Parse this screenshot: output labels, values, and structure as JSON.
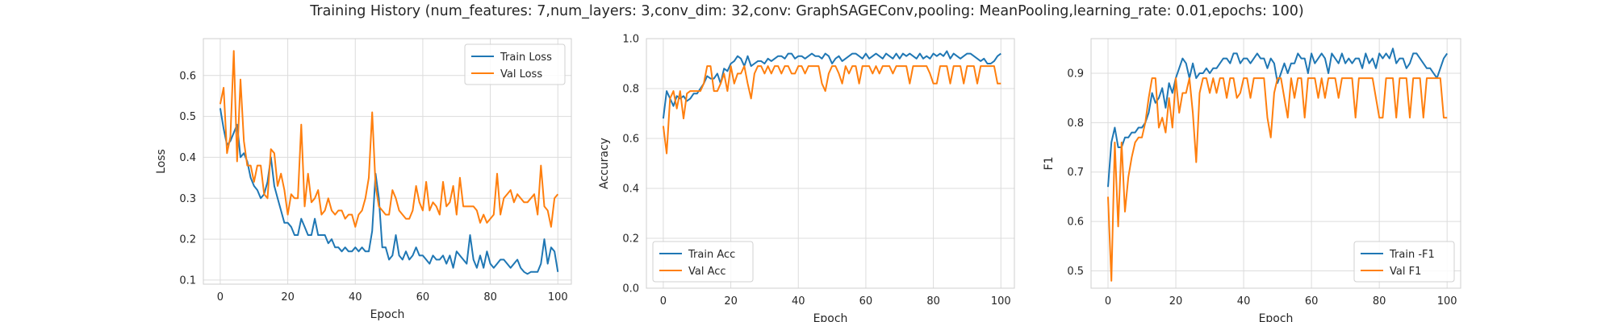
{
  "suptitle": "Training History (num_features: 7,num_layers: 3,conv_dim: 32,conv: GraphSAGEConv,pooling: MeanPooling,learning_rate: 0.01,epochs: 100)",
  "colors": {
    "train": "#1f77b4",
    "val": "#ff7f0e",
    "grid": "#dcdcdc",
    "frame": "#cfcfcf"
  },
  "chart_data": [
    {
      "type": "line",
      "xlabel": "Epoch",
      "ylabel": "Loss",
      "xlim": [
        -5,
        104
      ],
      "ylim": [
        0.09,
        0.69
      ],
      "xticks": [
        0,
        20,
        40,
        60,
        80,
        100
      ],
      "yticks": [
        0.1,
        0.2,
        0.3,
        0.4,
        0.5,
        0.6
      ],
      "ytick_labels": [
        "0.1",
        "0.2",
        "0.3",
        "0.4",
        "0.5",
        "0.6"
      ],
      "grid": true,
      "legend_loc": "top-right",
      "series": [
        {
          "name": "Train Loss",
          "color": "#1f77b4",
          "values": [
            0.52,
            0.47,
            0.43,
            0.44,
            0.46,
            0.48,
            0.4,
            0.41,
            0.39,
            0.35,
            0.33,
            0.32,
            0.3,
            0.31,
            0.34,
            0.4,
            0.33,
            0.3,
            0.27,
            0.24,
            0.24,
            0.23,
            0.21,
            0.21,
            0.25,
            0.23,
            0.21,
            0.21,
            0.25,
            0.21,
            0.21,
            0.21,
            0.19,
            0.2,
            0.18,
            0.18,
            0.17,
            0.18,
            0.17,
            0.17,
            0.18,
            0.17,
            0.18,
            0.17,
            0.17,
            0.22,
            0.36,
            0.3,
            0.18,
            0.18,
            0.15,
            0.16,
            0.21,
            0.16,
            0.15,
            0.17,
            0.15,
            0.16,
            0.18,
            0.16,
            0.16,
            0.15,
            0.14,
            0.16,
            0.15,
            0.15,
            0.16,
            0.14,
            0.16,
            0.13,
            0.17,
            0.16,
            0.15,
            0.14,
            0.21,
            0.15,
            0.13,
            0.16,
            0.13,
            0.17,
            0.14,
            0.13,
            0.14,
            0.15,
            0.15,
            0.14,
            0.13,
            0.14,
            0.15,
            0.13,
            0.12,
            0.115,
            0.12,
            0.12,
            0.12,
            0.14,
            0.2,
            0.14,
            0.18,
            0.17,
            0.12
          ]
        },
        {
          "name": "Val Loss",
          "color": "#ff7f0e",
          "values": [
            0.53,
            0.57,
            0.41,
            0.45,
            0.66,
            0.39,
            0.59,
            0.44,
            0.38,
            0.38,
            0.34,
            0.38,
            0.38,
            0.31,
            0.3,
            0.42,
            0.41,
            0.33,
            0.36,
            0.32,
            0.26,
            0.31,
            0.3,
            0.3,
            0.48,
            0.28,
            0.36,
            0.29,
            0.3,
            0.32,
            0.26,
            0.27,
            0.3,
            0.27,
            0.26,
            0.27,
            0.27,
            0.25,
            0.26,
            0.26,
            0.23,
            0.26,
            0.27,
            0.3,
            0.35,
            0.51,
            0.33,
            0.28,
            0.27,
            0.26,
            0.26,
            0.32,
            0.3,
            0.27,
            0.26,
            0.25,
            0.25,
            0.27,
            0.33,
            0.29,
            0.27,
            0.34,
            0.27,
            0.29,
            0.28,
            0.26,
            0.34,
            0.28,
            0.29,
            0.33,
            0.26,
            0.35,
            0.28,
            0.28,
            0.28,
            0.28,
            0.27,
            0.24,
            0.26,
            0.24,
            0.25,
            0.26,
            0.36,
            0.26,
            0.3,
            0.31,
            0.32,
            0.29,
            0.31,
            0.3,
            0.29,
            0.29,
            0.3,
            0.31,
            0.26,
            0.38,
            0.28,
            0.27,
            0.23,
            0.3,
            0.31
          ]
        }
      ]
    },
    {
      "type": "line",
      "xlabel": "Epoch",
      "ylabel": "Accuracy",
      "xlim": [
        -5,
        104
      ],
      "ylim": [
        0.0,
        1.0
      ],
      "xticks": [
        0,
        20,
        40,
        60,
        80,
        100
      ],
      "yticks": [
        0.0,
        0.2,
        0.4,
        0.6,
        0.8,
        1.0
      ],
      "ytick_labels": [
        "0.0",
        "0.2",
        "0.4",
        "0.6",
        "0.8",
        "1.0"
      ],
      "grid": true,
      "legend_loc": "bottom-left",
      "series": [
        {
          "name": "Train Acc",
          "color": "#1f77b4",
          "values": [
            0.68,
            0.79,
            0.76,
            0.73,
            0.77,
            0.76,
            0.77,
            0.75,
            0.76,
            0.78,
            0.78,
            0.8,
            0.82,
            0.85,
            0.84,
            0.84,
            0.86,
            0.82,
            0.88,
            0.87,
            0.9,
            0.91,
            0.93,
            0.92,
            0.89,
            0.93,
            0.89,
            0.9,
            0.91,
            0.91,
            0.9,
            0.92,
            0.91,
            0.92,
            0.93,
            0.93,
            0.92,
            0.94,
            0.94,
            0.92,
            0.93,
            0.93,
            0.92,
            0.93,
            0.94,
            0.93,
            0.93,
            0.92,
            0.94,
            0.93,
            0.9,
            0.92,
            0.93,
            0.91,
            0.92,
            0.93,
            0.94,
            0.94,
            0.93,
            0.92,
            0.94,
            0.92,
            0.93,
            0.94,
            0.93,
            0.92,
            0.94,
            0.93,
            0.92,
            0.94,
            0.92,
            0.94,
            0.93,
            0.94,
            0.93,
            0.92,
            0.94,
            0.92,
            0.93,
            0.92,
            0.94,
            0.93,
            0.94,
            0.93,
            0.95,
            0.92,
            0.94,
            0.93,
            0.92,
            0.93,
            0.94,
            0.94,
            0.93,
            0.92,
            0.91,
            0.92,
            0.9,
            0.9,
            0.91,
            0.93,
            0.94
          ]
        },
        {
          "name": "Val Acc",
          "color": "#ff7f0e",
          "values": [
            0.65,
            0.54,
            0.76,
            0.79,
            0.72,
            0.79,
            0.68,
            0.78,
            0.79,
            0.79,
            0.79,
            0.79,
            0.82,
            0.89,
            0.89,
            0.79,
            0.79,
            0.82,
            0.86,
            0.79,
            0.89,
            0.82,
            0.86,
            0.86,
            0.89,
            0.82,
            0.76,
            0.86,
            0.89,
            0.89,
            0.86,
            0.89,
            0.86,
            0.89,
            0.89,
            0.86,
            0.89,
            0.89,
            0.86,
            0.86,
            0.89,
            0.89,
            0.86,
            0.89,
            0.89,
            0.89,
            0.89,
            0.82,
            0.79,
            0.86,
            0.89,
            0.89,
            0.86,
            0.82,
            0.89,
            0.86,
            0.89,
            0.89,
            0.82,
            0.89,
            0.89,
            0.89,
            0.86,
            0.89,
            0.86,
            0.89,
            0.89,
            0.89,
            0.86,
            0.89,
            0.89,
            0.89,
            0.89,
            0.82,
            0.89,
            0.89,
            0.89,
            0.89,
            0.89,
            0.86,
            0.82,
            0.82,
            0.89,
            0.89,
            0.89,
            0.82,
            0.89,
            0.89,
            0.89,
            0.82,
            0.89,
            0.89,
            0.89,
            0.82,
            0.89,
            0.89,
            0.89,
            0.89,
            0.89,
            0.82,
            0.82
          ]
        }
      ]
    },
    {
      "type": "line",
      "xlabel": "Epoch",
      "ylabel": "F1",
      "xlim": [
        -5,
        104
      ],
      "ylim": [
        0.465,
        0.97
      ],
      "xticks": [
        0,
        20,
        40,
        60,
        80,
        100
      ],
      "yticks": [
        0.5,
        0.6,
        0.7,
        0.8,
        0.9
      ],
      "ytick_labels": [
        "0.5",
        "0.6",
        "0.7",
        "0.8",
        "0.9"
      ],
      "grid": true,
      "legend_loc": "bottom-right",
      "series": [
        {
          "name": "Train -F1",
          "color": "#1f77b4",
          "values": [
            0.67,
            0.76,
            0.79,
            0.75,
            0.75,
            0.77,
            0.77,
            0.78,
            0.78,
            0.79,
            0.79,
            0.8,
            0.82,
            0.86,
            0.84,
            0.85,
            0.87,
            0.83,
            0.88,
            0.86,
            0.89,
            0.91,
            0.93,
            0.92,
            0.89,
            0.92,
            0.89,
            0.9,
            0.9,
            0.91,
            0.9,
            0.91,
            0.91,
            0.92,
            0.93,
            0.93,
            0.92,
            0.94,
            0.94,
            0.92,
            0.93,
            0.93,
            0.92,
            0.93,
            0.94,
            0.93,
            0.93,
            0.91,
            0.93,
            0.92,
            0.88,
            0.9,
            0.92,
            0.9,
            0.92,
            0.92,
            0.94,
            0.93,
            0.93,
            0.9,
            0.94,
            0.92,
            0.93,
            0.94,
            0.93,
            0.9,
            0.94,
            0.93,
            0.92,
            0.94,
            0.92,
            0.93,
            0.92,
            0.93,
            0.93,
            0.91,
            0.94,
            0.92,
            0.93,
            0.91,
            0.94,
            0.93,
            0.94,
            0.93,
            0.95,
            0.92,
            0.93,
            0.93,
            0.91,
            0.92,
            0.94,
            0.94,
            0.93,
            0.92,
            0.91,
            0.91,
            0.9,
            0.89,
            0.91,
            0.93,
            0.94
          ]
        },
        {
          "name": "Val F1",
          "color": "#ff7f0e",
          "values": [
            0.65,
            0.48,
            0.76,
            0.59,
            0.76,
            0.62,
            0.69,
            0.73,
            0.76,
            0.77,
            0.77,
            0.8,
            0.85,
            0.89,
            0.89,
            0.79,
            0.81,
            0.78,
            0.85,
            0.79,
            0.89,
            0.82,
            0.86,
            0.86,
            0.89,
            0.82,
            0.72,
            0.86,
            0.89,
            0.89,
            0.86,
            0.89,
            0.86,
            0.89,
            0.89,
            0.85,
            0.89,
            0.89,
            0.85,
            0.86,
            0.89,
            0.89,
            0.85,
            0.89,
            0.89,
            0.89,
            0.89,
            0.81,
            0.77,
            0.86,
            0.89,
            0.89,
            0.85,
            0.81,
            0.89,
            0.85,
            0.89,
            0.89,
            0.81,
            0.89,
            0.89,
            0.89,
            0.85,
            0.89,
            0.85,
            0.89,
            0.89,
            0.89,
            0.85,
            0.89,
            0.89,
            0.89,
            0.89,
            0.81,
            0.89,
            0.89,
            0.89,
            0.89,
            0.89,
            0.85,
            0.81,
            0.81,
            0.89,
            0.89,
            0.89,
            0.81,
            0.89,
            0.89,
            0.89,
            0.81,
            0.89,
            0.89,
            0.89,
            0.81,
            0.89,
            0.89,
            0.89,
            0.89,
            0.89,
            0.81,
            0.81
          ]
        }
      ]
    }
  ]
}
